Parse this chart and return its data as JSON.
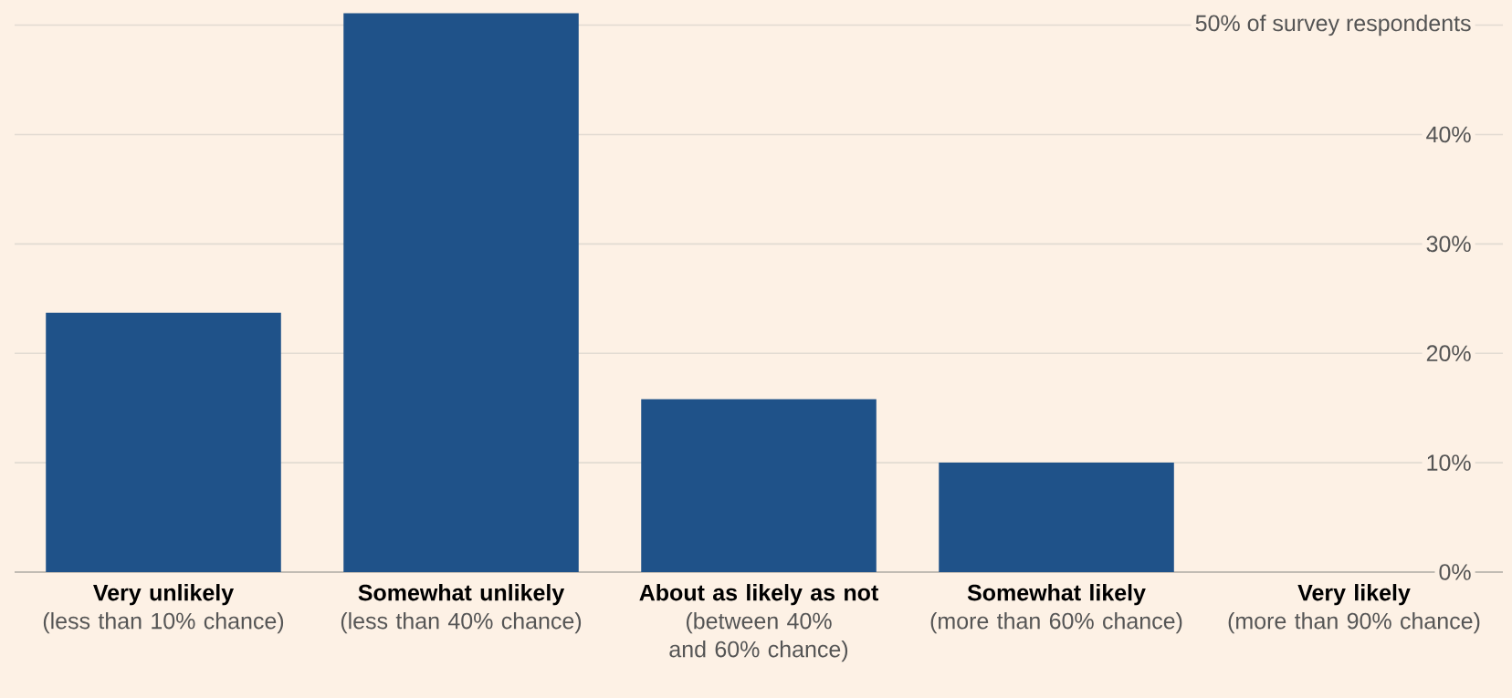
{
  "chart_data": {
    "type": "bar",
    "categories": [
      "**Very unlikely** (less than 10% chance)",
      "**Somewhat unlikely** (less than 40% chance)",
      "**About as likely as not** (between 40% and 60% chance)",
      "**Somewhat likely** (more than 60% chance)",
      "**Very likely** (more than 90% chance)"
    ],
    "values": [
      23.7,
      51.1,
      15.8,
      10,
      0
    ],
    "color": "#1f5289",
    "ylim": [
      0,
      52
    ],
    "yticks": [
      {
        "value": 0,
        "label": "0%"
      },
      {
        "value": 10,
        "label": "10%"
      },
      {
        "value": 20,
        "label": "20%"
      },
      {
        "value": 30,
        "label": "30%"
      },
      {
        "value": 40,
        "label": "40%"
      },
      {
        "value": 50,
        "label": "50% of survey respondents"
      }
    ],
    "grid": "y"
  }
}
